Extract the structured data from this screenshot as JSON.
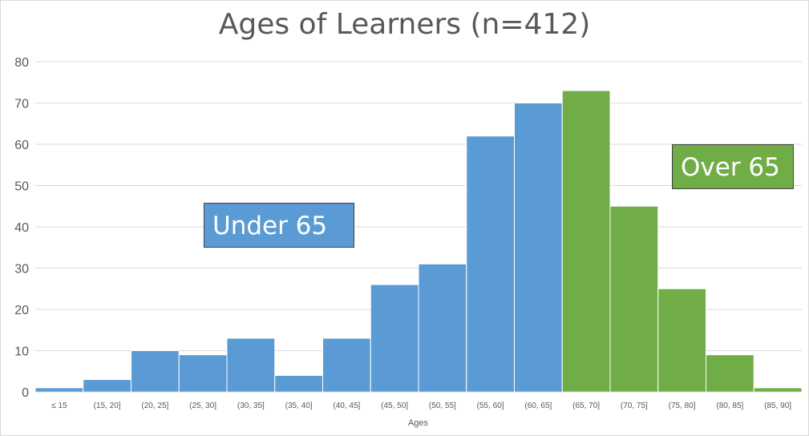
{
  "chart_data": {
    "type": "bar",
    "title": "Ages of Learners (n=412)",
    "xlabel": "Ages",
    "ylabel": "",
    "categories": [
      "≤ 15",
      "(15, 20]",
      "(20, 25]",
      "(25, 30]",
      "(30, 35]",
      "(35, 40]",
      "(40, 45]",
      "(45, 50]",
      "(50, 55]",
      "(55, 60]",
      "(60, 65]",
      "(65, 70]",
      "(70, 75]",
      "(75, 80]",
      "(80, 85]",
      "(85, 90]"
    ],
    "values": [
      1,
      3,
      10,
      9,
      13,
      4,
      13,
      26,
      31,
      62,
      70,
      73,
      45,
      25,
      9,
      1
    ],
    "groups": [
      "under",
      "under",
      "under",
      "under",
      "under",
      "under",
      "under",
      "under",
      "under",
      "under",
      "under",
      "over",
      "over",
      "over",
      "over",
      "over"
    ],
    "ylim": [
      0,
      80
    ],
    "yticks": [
      0,
      10,
      20,
      30,
      40,
      50,
      60,
      70,
      80
    ],
    "grid": true,
    "gap": "none",
    "colors": {
      "under": "#5b9bd5",
      "over": "#70ad47",
      "grid": "#d9d9d9",
      "text": "#595959"
    },
    "annotations": {
      "under": "Under 65",
      "over": "Over  65"
    }
  }
}
